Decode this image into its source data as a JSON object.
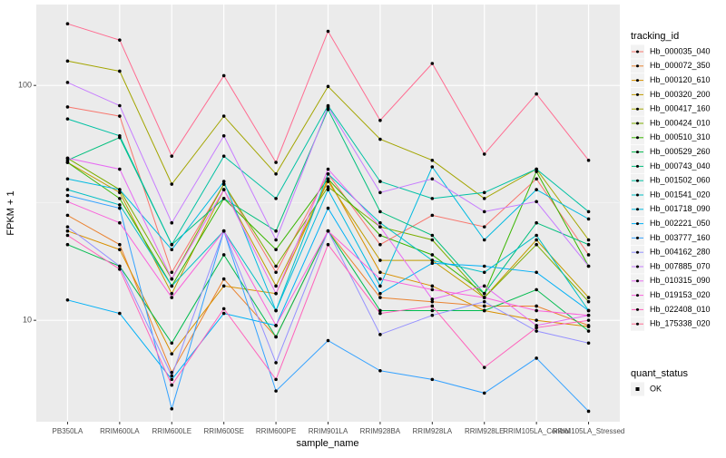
{
  "chart_data": {
    "type": "line",
    "ylabel": "FPKM + 1",
    "xlabel": "sample_name",
    "log_y": true,
    "grid": true,
    "categories": [
      "PB350LA",
      "RRIM600LA",
      "RRIM600LE",
      "RRIM600SE",
      "RRIM600PE",
      "RRIM901LA",
      "RRIM928BA",
      "RRIM928LA",
      "RRIM928LE",
      "RRIM105LA_Control",
      "RRIM105LA_Stressed"
    ],
    "ylim": [
      3.7,
      221
    ],
    "yticks": [
      10,
      100
    ],
    "legend_title": "tracking_id",
    "shape_legend": {
      "title": "quant_status",
      "labels": [
        "OK"
      ]
    },
    "series": [
      {
        "name": "Hb_000035_040",
        "color": "#F8766D",
        "values": [
          81,
          74,
          16,
          38,
          16,
          42,
          21,
          28,
          25,
          40,
          19
        ]
      },
      {
        "name": "Hb_000072_350",
        "color": "#EA8331",
        "values": [
          28,
          21,
          6.0,
          15,
          8.5,
          24,
          12.5,
          12,
          11.5,
          11.5,
          9.5
        ]
      },
      {
        "name": "Hb_000120_610",
        "color": "#D89000",
        "values": [
          24,
          20,
          7.2,
          14,
          13,
          40,
          16,
          14,
          11,
          10,
          9.4
        ]
      },
      {
        "name": "Hb_000320_200",
        "color": "#C09B00",
        "values": [
          47,
          35,
          13,
          36,
          14,
          39,
          18,
          18,
          12.5,
          22,
          12.5
        ]
      },
      {
        "name": "Hb_000417_160",
        "color": "#A3A500",
        "values": [
          127,
          115,
          38,
          74,
          42,
          99,
          59,
          48,
          33,
          44,
          22
        ]
      },
      {
        "name": "Hb_000424_010",
        "color": "#7CAE00",
        "values": [
          49,
          36,
          15,
          38,
          17,
          37,
          25,
          22,
          12.5,
          21,
          12
        ]
      },
      {
        "name": "Hb_000510_310",
        "color": "#39B600",
        "values": [
          47,
          33,
          14,
          33,
          20,
          40,
          23,
          19,
          13,
          43,
          17
        ]
      },
      {
        "name": "Hb_000529_260",
        "color": "#00BB4E",
        "values": [
          21,
          17,
          8,
          19,
          8.5,
          24,
          11,
          11,
          11,
          13.5,
          9
        ]
      },
      {
        "name": "Hb_000743_040",
        "color": "#00BF7D",
        "values": [
          48,
          60,
          21,
          33,
          24,
          79,
          29,
          23,
          13,
          26,
          21
        ]
      },
      {
        "name": "Hb_001502_060",
        "color": "#00C1A3",
        "values": [
          72,
          61,
          21,
          50,
          33,
          82,
          39,
          33,
          35,
          44,
          29
        ]
      },
      {
        "name": "Hb_001541_020",
        "color": "#00BFC4",
        "values": [
          36,
          31,
          14,
          24,
          11,
          42,
          26,
          18,
          16,
          23,
          11
        ]
      },
      {
        "name": "Hb_001718_090",
        "color": "#00BAE0",
        "values": [
          40,
          36,
          20,
          39,
          11,
          36,
          14,
          45,
          22,
          36,
          27
        ]
      },
      {
        "name": "Hb_002221_050",
        "color": "#00B0F6",
        "values": [
          12.2,
          10.7,
          5.6,
          10.7,
          9.5,
          30,
          13,
          17.5,
          17,
          16,
          11
        ]
      },
      {
        "name": "Hb_003777_160",
        "color": "#35A2FF",
        "values": [
          34,
          30,
          4.2,
          24,
          5,
          8.2,
          6.1,
          5.6,
          4.9,
          6.9,
          4.1
        ]
      },
      {
        "name": "Hb_004162_280",
        "color": "#9590FF",
        "values": [
          25,
          17,
          5.8,
          24,
          6.6,
          24,
          8.7,
          10.5,
          12,
          9,
          8
        ]
      },
      {
        "name": "Hb_007885_070",
        "color": "#C77CFF",
        "values": [
          103,
          82,
          26,
          61,
          22,
          81,
          35,
          40,
          29,
          32,
          17
        ]
      },
      {
        "name": "Hb_010315_090",
        "color": "#E76BF3",
        "values": [
          49,
          44,
          15,
          36,
          13,
          44,
          25,
          12.3,
          14,
          9.5,
          10.5
        ]
      },
      {
        "name": "Hb_019153_020",
        "color": "#FA62DB",
        "values": [
          32,
          26,
          12.5,
          24,
          9.5,
          24,
          15,
          13.5,
          12.5,
          11,
          10.5
        ]
      },
      {
        "name": "Hb_022408_010",
        "color": "#FF62BC",
        "values": [
          23,
          16.5,
          5.3,
          11.2,
          5.6,
          21,
          10.7,
          11.5,
          6.3,
          9.3,
          10
        ]
      },
      {
        "name": "Hb_175338_020",
        "color": "#FF6C91",
        "values": [
          183,
          156,
          50,
          110,
          47,
          170,
          71,
          124,
          51,
          92,
          48
        ]
      }
    ]
  }
}
